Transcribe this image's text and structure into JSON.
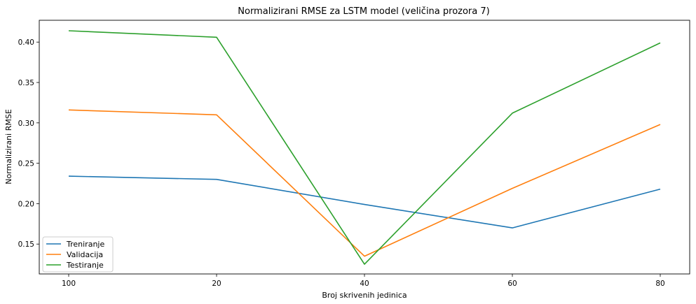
{
  "chart_data": {
    "type": "line",
    "title": "Normalizirani RMSE za LSTM model (veličina prozora 7)",
    "xlabel": "Broj skrivenih jedinica",
    "ylabel": "Normalizirani RMSE",
    "categories": [
      "100",
      "20",
      "40",
      "60",
      "80"
    ],
    "ylim": [
      0.113,
      0.427
    ],
    "yticks": [
      0.15,
      0.2,
      0.25,
      0.3,
      0.35,
      0.4
    ],
    "ytick_labels": [
      "0.15",
      "0.20",
      "0.25",
      "0.30",
      "0.35",
      "0.40"
    ],
    "grid": false,
    "legend_position": "lower-left",
    "series": [
      {
        "name": "Treniranje",
        "color": "#1f77b4",
        "values": [
          0.234,
          0.23,
          0.199,
          0.17,
          0.218
        ]
      },
      {
        "name": "Validacija",
        "color": "#ff7f0e",
        "values": [
          0.316,
          0.31,
          0.135,
          0.219,
          0.298
        ]
      },
      {
        "name": "Testiranje",
        "color": "#2ca02c",
        "values": [
          0.414,
          0.406,
          0.125,
          0.312,
          0.399
        ]
      }
    ]
  }
}
